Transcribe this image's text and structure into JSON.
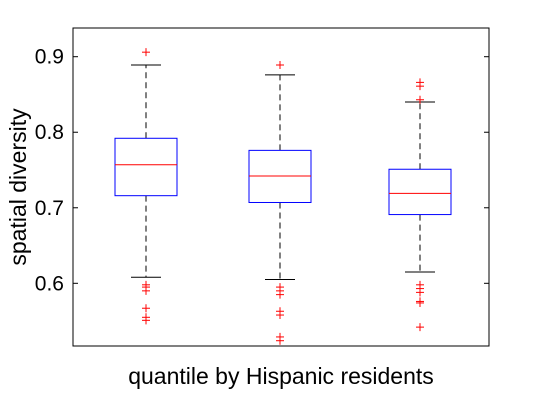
{
  "chart_data": {
    "type": "box",
    "title": "",
    "xlabel": "quantile by Hispanic residents",
    "ylabel": "spatial diversity",
    "ylim": [
      0.517,
      0.938
    ],
    "yticks": [
      0.6,
      0.7,
      0.8,
      0.9
    ],
    "ytick_labels": [
      "0.6",
      "0.7",
      "0.8",
      "0.9"
    ],
    "xtick_labels": [],
    "grid": false,
    "legend": "none",
    "colors": {
      "box": "#0000ff",
      "median": "#ff0000",
      "whisker": "#000000",
      "outlier": "#ff0000"
    },
    "boxes": [
      {
        "q1": 0.716,
        "median": 0.757,
        "q3": 0.792,
        "whisker_low": 0.608,
        "whisker_high": 0.889,
        "outliers": [
          0.906,
          0.598,
          0.595,
          0.59,
          0.567,
          0.555,
          0.551
        ]
      },
      {
        "q1": 0.707,
        "median": 0.742,
        "q3": 0.776,
        "whisker_low": 0.605,
        "whisker_high": 0.876,
        "outliers": [
          0.889,
          0.595,
          0.59,
          0.585,
          0.563,
          0.558,
          0.529,
          0.524
        ]
      },
      {
        "q1": 0.691,
        "median": 0.719,
        "q3": 0.751,
        "whisker_low": 0.615,
        "whisker_high": 0.84,
        "outliers": [
          0.866,
          0.861,
          0.843,
          0.598,
          0.593,
          0.588,
          0.576,
          0.574,
          0.542
        ]
      }
    ]
  }
}
